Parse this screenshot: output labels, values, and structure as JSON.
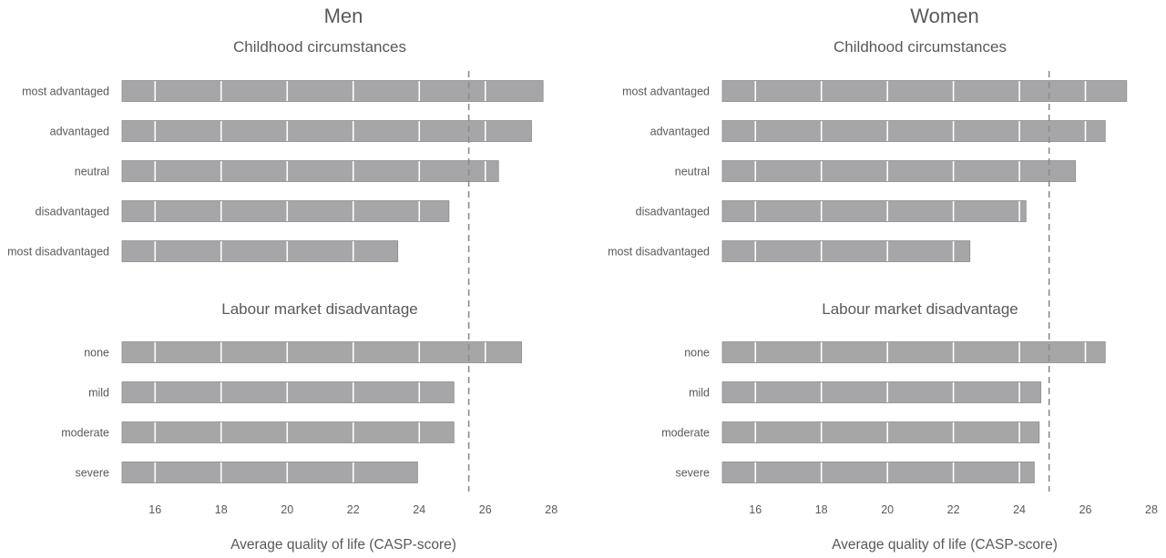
{
  "chart_data": [
    {
      "type": "bar",
      "orientation": "horizontal",
      "title": "Men",
      "xlabel": "Average quality of life (CASP-score)",
      "xlim": [
        15,
        28
      ],
      "xticks": [
        16,
        18,
        20,
        22,
        24,
        26,
        28
      ],
      "grid": true,
      "reference_line": 25.5,
      "bar_color": "#a6a6a8",
      "panels": [
        {
          "subtitle": "Childhood circumstances",
          "categories": [
            "most advantaged",
            "advantaged",
            "neutral",
            "disadvantaged",
            "most disadvantaged"
          ],
          "values": [
            27.75,
            27.4,
            26.4,
            24.9,
            23.35
          ]
        },
        {
          "subtitle": "Labour market disadvantage",
          "categories": [
            "none",
            "mild",
            "moderate",
            "severe"
          ],
          "values": [
            27.1,
            25.05,
            25.05,
            23.95
          ]
        }
      ]
    },
    {
      "type": "bar",
      "orientation": "horizontal",
      "title": "Women",
      "xlabel": "Average quality of life (CASP-score)",
      "xlim": [
        15,
        28
      ],
      "xticks": [
        16,
        18,
        20,
        22,
        24,
        26,
        28
      ],
      "grid": true,
      "reference_line": 24.9,
      "bar_color": "#a6a6a8",
      "panels": [
        {
          "subtitle": "Childhood circumstances",
          "categories": [
            "most advantaged",
            "advantaged",
            "neutral",
            "disadvantaged",
            "most disadvantaged"
          ],
          "values": [
            27.25,
            26.6,
            25.7,
            24.2,
            22.5
          ]
        },
        {
          "subtitle": "Labour market disadvantage",
          "categories": [
            "none",
            "mild",
            "moderate",
            "severe"
          ],
          "values": [
            26.6,
            24.65,
            24.6,
            24.45
          ]
        }
      ]
    }
  ]
}
